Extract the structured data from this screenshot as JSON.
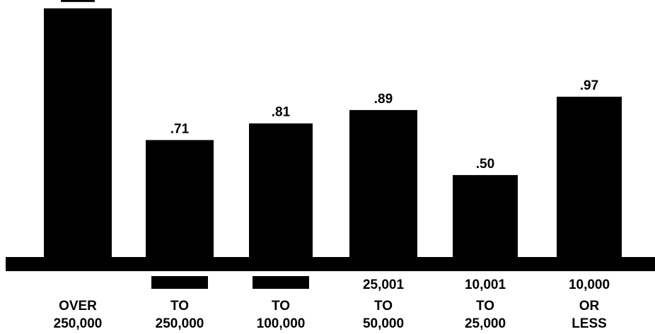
{
  "chart_data": {
    "type": "bar",
    "categories": [
      [
        "OVER",
        "250,000"
      ],
      [
        "",
        "TO",
        "250,000"
      ],
      [
        "",
        "TO",
        "100,000"
      ],
      [
        "25,001",
        "TO",
        "50,000"
      ],
      [
        "10,001",
        "TO",
        "25,000"
      ],
      [
        "10,000",
        "OR",
        "LESS"
      ]
    ],
    "values": [
      1.5,
      0.71,
      0.81,
      0.89,
      0.5,
      0.97
    ],
    "data_labels": [
      "",
      ".71",
      ".81",
      ".89",
      ".50",
      ".97"
    ],
    "redacted_value_label": [
      true,
      false,
      false,
      false,
      false,
      false
    ],
    "redacted_category_line": [
      false,
      true,
      true,
      false,
      false,
      false
    ],
    "ylim": [
      0,
      1.55
    ],
    "grid": false,
    "colors": {
      "bar": "#000000",
      "background": "#ffffff"
    }
  }
}
